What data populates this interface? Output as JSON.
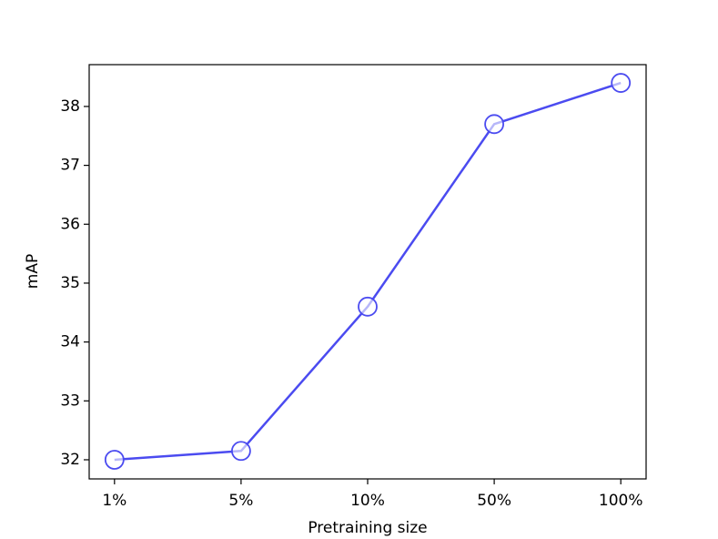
{
  "chart_data": {
    "type": "line",
    "x_label": "Pretraining size",
    "y_label": "mAP",
    "categories": [
      "1%",
      "5%",
      "10%",
      "50%",
      "100%"
    ],
    "series": [
      {
        "name": null,
        "color": "#4b4bf0",
        "values": [
          32.0,
          32.15,
          34.6,
          37.7,
          38.4
        ]
      }
    ],
    "ylim": [
      31.675,
      38.71
    ],
    "yticks": [
      32,
      33,
      34,
      35,
      36,
      37,
      38
    ],
    "grid": false
  }
}
